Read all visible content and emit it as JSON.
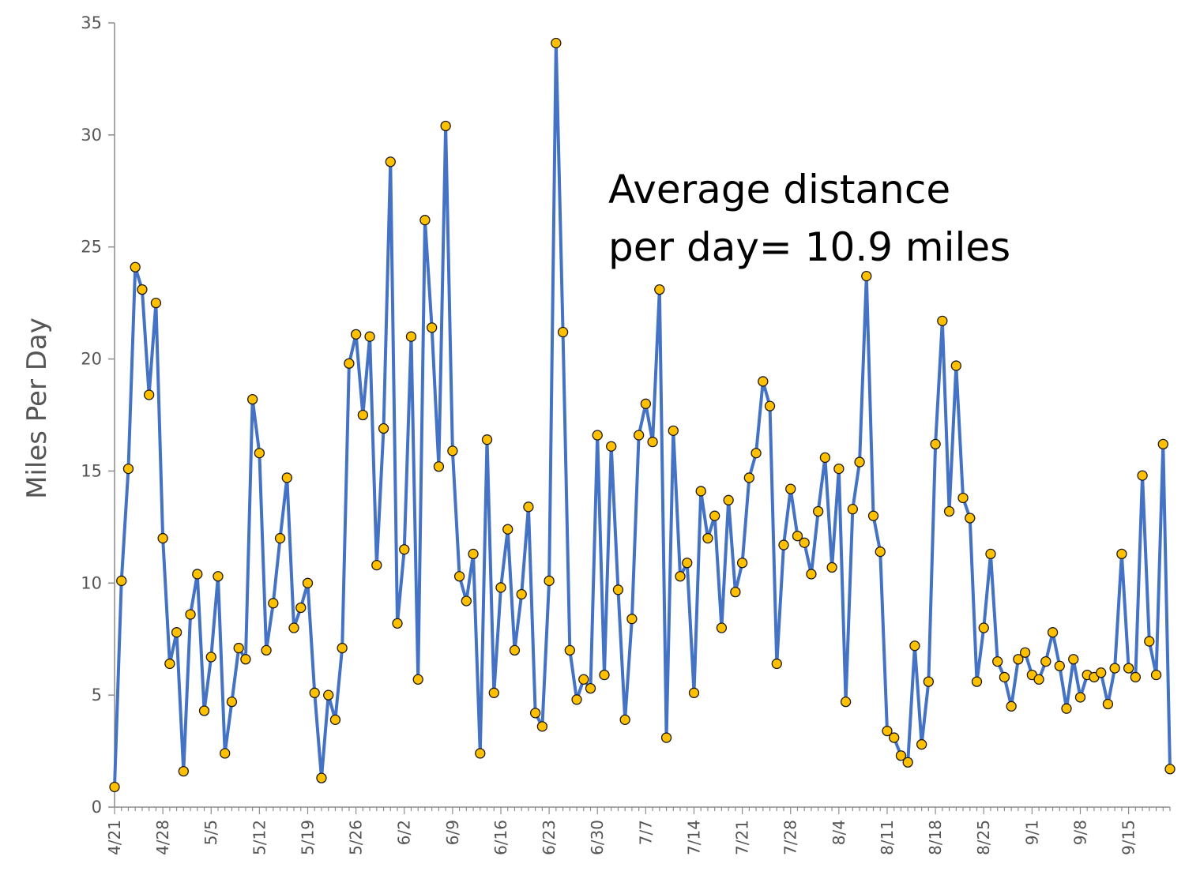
{
  "chart_data": {
    "type": "line",
    "title": "",
    "xlabel": "",
    "ylabel": "Miles Per Day",
    "ylim": [
      0,
      35
    ],
    "yticks": [
      0,
      5,
      10,
      15,
      20,
      25,
      30,
      35
    ],
    "x_tick_labels": [
      "4/21",
      "4/28",
      "5/5",
      "5/12",
      "5/19",
      "5/26",
      "6/2",
      "6/9",
      "6/16",
      "6/23",
      "6/30",
      "7/7",
      "7/14",
      "7/21",
      "7/28",
      "8/4",
      "8/11",
      "8/18",
      "8/25",
      "9/1",
      "9/8",
      "9/15"
    ],
    "x_tick_interval_days": 7,
    "x_start_label": "4/21",
    "grid": false,
    "legend": "none",
    "annotation": [
      "Average distance",
      "per day= 10.9 miles"
    ],
    "series": [
      {
        "line_color": "#4472C4",
        "marker_color": "#FFC000",
        "values": [
          0.9,
          10.1,
          15.1,
          24.1,
          23.1,
          18.4,
          22.5,
          12.0,
          6.4,
          7.8,
          1.6,
          8.6,
          10.4,
          4.3,
          6.7,
          10.3,
          2.4,
          4.7,
          7.1,
          6.6,
          18.2,
          15.8,
          7.0,
          9.1,
          12.0,
          14.7,
          8.0,
          8.9,
          10.0,
          5.1,
          1.3,
          5.0,
          3.9,
          7.1,
          19.8,
          21.1,
          17.5,
          21.0,
          10.8,
          16.9,
          28.8,
          8.2,
          11.5,
          21.0,
          5.7,
          26.2,
          21.4,
          15.2,
          30.4,
          15.9,
          10.3,
          9.2,
          11.3,
          2.4,
          16.4,
          5.1,
          9.8,
          12.4,
          7.0,
          9.5,
          13.4,
          4.2,
          3.6,
          10.1,
          34.1,
          21.2,
          7.0,
          4.8,
          5.7,
          5.3,
          16.6,
          5.9,
          16.1,
          9.7,
          3.9,
          8.4,
          16.6,
          18.0,
          16.3,
          23.1,
          3.1,
          16.8,
          10.3,
          10.9,
          5.1,
          14.1,
          12.0,
          13.0,
          8.0,
          13.7,
          9.6,
          10.9,
          14.7,
          15.8,
          19.0,
          17.9,
          6.4,
          11.7,
          14.2,
          12.1,
          11.8,
          10.4,
          13.2,
          15.6,
          10.7,
          15.1,
          4.7,
          13.3,
          15.4,
          23.7,
          13.0,
          11.4,
          3.4,
          3.1,
          2.3,
          2.0,
          7.2,
          2.8,
          5.6,
          16.2,
          21.7,
          13.2,
          19.7,
          13.8,
          12.9,
          5.6,
          8.0,
          11.3,
          6.5,
          5.8,
          4.5,
          6.6,
          6.9,
          5.9,
          5.7,
          6.5,
          7.8,
          6.3,
          4.4,
          6.6,
          4.9,
          5.9,
          5.8,
          6.0,
          4.6,
          6.2,
          11.3,
          6.2,
          5.8,
          14.8,
          7.4,
          5.9,
          16.2,
          1.7
        ]
      }
    ]
  }
}
